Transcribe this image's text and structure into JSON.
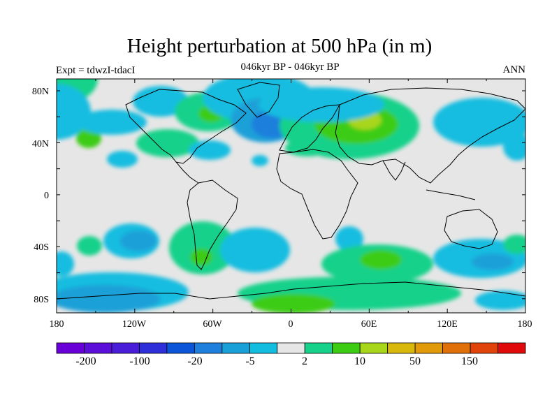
{
  "title": "Height perturbation at 500 hPa (in m)",
  "subtitle": "046kyr BP - 046kyr BP",
  "left_label": "Expt = tdwzI-tdacI",
  "right_label": "ANN",
  "y_ticks": [
    "80N",
    "40N",
    "0",
    "40S",
    "80S"
  ],
  "x_ticks": [
    "180",
    "120W",
    "60W",
    "0",
    "60E",
    "120E",
    "180"
  ],
  "colorbar": {
    "colors": [
      "#6a00d8",
      "#5b0fd8",
      "#4a1ed8",
      "#2e2fd8",
      "#0a55d8",
      "#1f7fdc",
      "#1aa0d8",
      "#12bde0",
      "#e6e6e6",
      "#16d18a",
      "#3ccc14",
      "#a8d61a",
      "#d8b80a",
      "#e09a0a",
      "#e0700a",
      "#e0440a",
      "#e00a0a"
    ],
    "labels": [
      "-200",
      "-100",
      "-20",
      "-5",
      "2",
      "10",
      "50",
      "150"
    ]
  },
  "map_colors": {
    "background": "#e6e6e6",
    "neg1": "#12bde0",
    "neg2": "#1aa0d8",
    "neg3": "#1f7fdc",
    "neg4": "#2e5ed8",
    "pos1": "#16d18a",
    "pos2": "#3ccc14",
    "pos3": "#a8d61a"
  }
}
